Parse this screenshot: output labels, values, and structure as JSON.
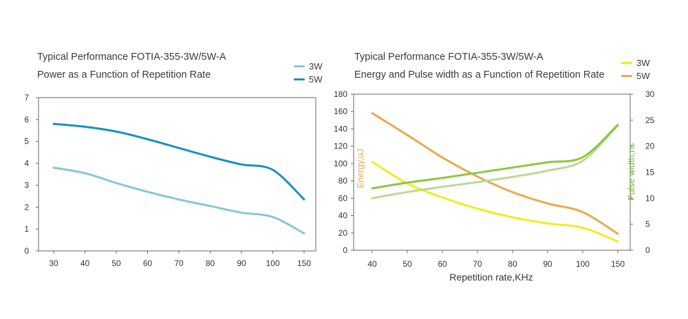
{
  "charts": [
    {
      "title": "Typical Performance FOTIA-355-3W/5W-A",
      "subtitle": "Power as a Function of Repetition Rate",
      "legend": [
        {
          "label": "3W",
          "color": "#85c8d2"
        },
        {
          "label": "5W",
          "color": "#1b8fc0"
        }
      ]
    },
    {
      "title": "Typical Performance FOTIA-355-3W/5W-A",
      "subtitle": "Energy and Pulse width as a Function of Repetition Rate",
      "legend": [
        {
          "label": "3W",
          "color": "#f2ec1c"
        },
        {
          "label": "5W",
          "color": "#eaa94a"
        }
      ],
      "xlabel": "Repetition rate,KHz",
      "ylabel_left": "Energy,uJ",
      "ylabel_right": "Pulse width,ns"
    }
  ],
  "chart_data": [
    {
      "type": "line",
      "title": "Typical Performance FOTIA-355-3W/5W-A",
      "subtitle": "Power as a Function of Repetition Rate",
      "categories": [
        "30",
        "40",
        "50",
        "60",
        "70",
        "80",
        "90",
        "100",
        "150"
      ],
      "y_ticks": [
        0,
        1,
        2,
        3,
        4,
        5,
        6,
        7
      ],
      "ylim": [
        0,
        7
      ],
      "grid": false,
      "legend_position": "top-right",
      "series": [
        {
          "name": "3W",
          "color": "#85c8d2",
          "values": [
            3.8,
            3.55,
            3.1,
            2.7,
            2.35,
            2.05,
            1.75,
            1.55,
            0.8
          ]
        },
        {
          "name": "5W",
          "color": "#1b8fc0",
          "values": [
            5.8,
            5.67,
            5.45,
            5.1,
            4.7,
            4.3,
            3.95,
            3.7,
            2.35
          ]
        }
      ]
    },
    {
      "type": "line",
      "title": "Typical Performance FOTIA-355-3W/5W-A",
      "subtitle": "Energy and Pulse width as a Function of Repetition Rate",
      "xlabel": "Repetition rate,KHz",
      "ylabel_left": "Energy,uJ",
      "ylabel_right": "Pulse width,ns",
      "categories": [
        "40",
        "50",
        "60",
        "70",
        "80",
        "90",
        "100",
        "150"
      ],
      "y_left_ticks": [
        0,
        20,
        40,
        60,
        80,
        100,
        120,
        140,
        160,
        180
      ],
      "y_left_range": [
        0,
        180
      ],
      "y_right_ticks": [
        0,
        5,
        10,
        15,
        20,
        25,
        30
      ],
      "y_right_range": [
        0,
        30
      ],
      "grid": false,
      "legend_position": "top-right",
      "series": [
        {
          "name": "3W",
          "axis": "left",
          "color": "#f2ec1c",
          "values": [
            102,
            77,
            61,
            48,
            38,
            31,
            26,
            10
          ]
        },
        {
          "name": "5W",
          "axis": "left",
          "color": "#eaa94a",
          "values": [
            158,
            133,
            107,
            85,
            67,
            54,
            44,
            19
          ]
        },
        {
          "name": "Pulse width 3W",
          "axis": "right",
          "color": "#b9d992",
          "values": [
            10,
            11.2,
            12.2,
            13.1,
            14.1,
            15.3,
            17.2,
            24
          ]
        },
        {
          "name": "Pulse width 5W",
          "axis": "right",
          "color": "#8dc63f",
          "values": [
            11.9,
            13,
            13.9,
            14.9,
            15.9,
            16.9,
            17.9,
            24.1
          ]
        }
      ]
    }
  ]
}
